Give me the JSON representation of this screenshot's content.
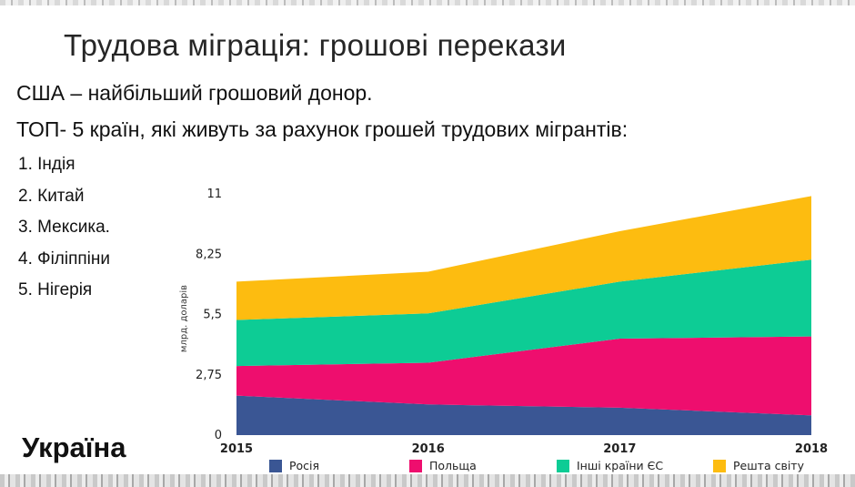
{
  "slide": {
    "title": "Трудова міграція: грошові перекази",
    "line1": "США – найбільший грошовий донор.",
    "line2": "ТОП- 5 країн, які живуть за рахунок грошей трудових мігрантів:",
    "list": [
      "1. Індія",
      "2. Китай",
      "3. Мексика.",
      "4. Філіппіни",
      "5. Нігерія"
    ],
    "country": "Україна"
  },
  "chart_data": {
    "type": "area",
    "stacked": true,
    "x": [
      "2015",
      "2016",
      "2017",
      "2018"
    ],
    "ylabel": "млрд. доларів",
    "yticks": [
      "0",
      "2,75",
      "5,5",
      "8,25",
      "11"
    ],
    "ylim": [
      0,
      11
    ],
    "series": [
      {
        "name": "Росія",
        "color": "#3a5694",
        "values": [
          1.8,
          1.4,
          1.25,
          0.9
        ]
      },
      {
        "name": "Польща",
        "color": "#ee0e6e",
        "values": [
          1.35,
          1.9,
          3.15,
          3.6
        ]
      },
      {
        "name": "Інші країни ЄС",
        "color": "#0dcc95",
        "values": [
          2.1,
          2.25,
          2.6,
          3.5
        ]
      },
      {
        "name": "Решта світу",
        "color": "#fdbc10",
        "values": [
          1.75,
          1.9,
          2.3,
          2.9
        ]
      }
    ],
    "legend_position": "bottom"
  }
}
